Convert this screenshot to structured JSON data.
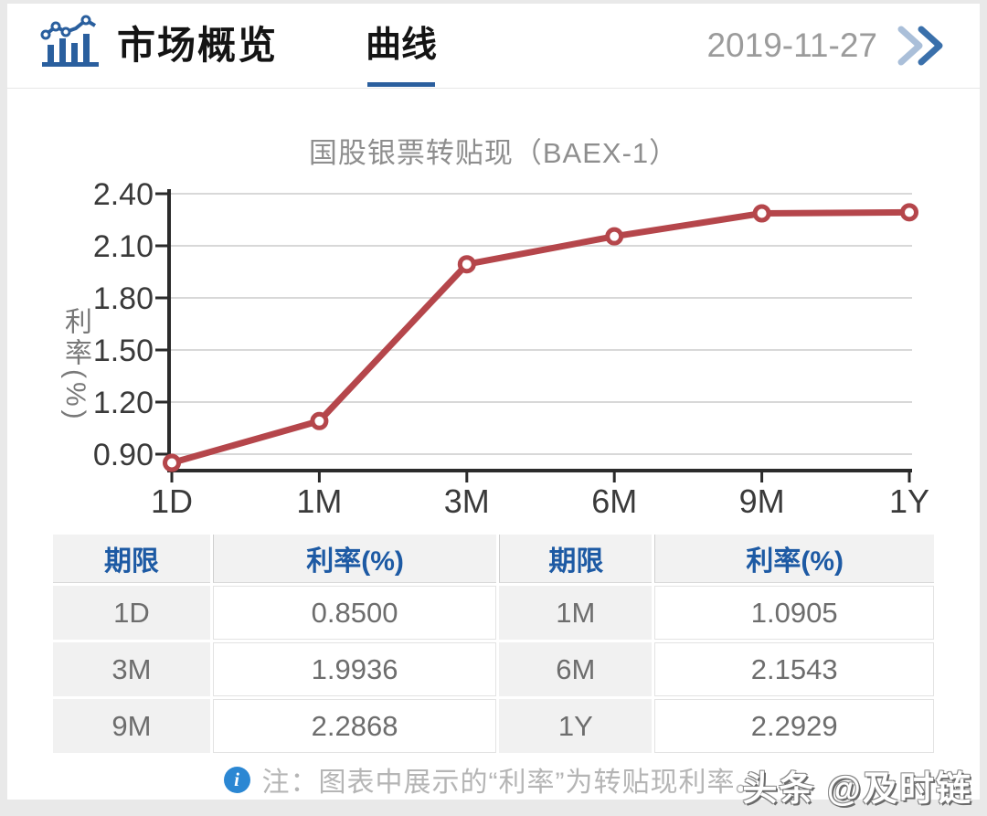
{
  "header": {
    "title": "市场概览",
    "tab": "曲线",
    "date": "2019-11-27",
    "accent_color": "#2b5f9e"
  },
  "chart_data": {
    "type": "line",
    "title": "国股银票转贴现（BAEX-1）",
    "ylabel": "利率(%)",
    "categories": [
      "1D",
      "1M",
      "3M",
      "6M",
      "9M",
      "1Y"
    ],
    "values": [
      0.85,
      1.0905,
      1.9936,
      2.1543,
      2.2868,
      2.2929
    ],
    "yticks": [
      2.4,
      2.1,
      1.8,
      1.5,
      1.2,
      0.9
    ],
    "ytick_labels": [
      "2.40",
      "2.10",
      "1.80",
      "1.50",
      "1.20",
      "0.90"
    ],
    "ylim": [
      0.8,
      2.45
    ],
    "grid": true,
    "legend": false,
    "line_color": "#b5464b",
    "marker": "open-circle",
    "grid_color": "#d8d8d8",
    "axis_color": "#2b2b2b",
    "tick_text_color": "#3a3a3a"
  },
  "table": {
    "headers": [
      "期限",
      "利率(%)",
      "期限",
      "利率(%)"
    ],
    "rows": [
      [
        "1D",
        "0.8500",
        "1M",
        "1.0905"
      ],
      [
        "3M",
        "1.9936",
        "6M",
        "2.1543"
      ],
      [
        "9M",
        "2.2868",
        "1Y",
        "2.2929"
      ]
    ]
  },
  "note": {
    "text": "注：图表中展示的“利率”为转贴现利率。"
  },
  "watermark": "头条 @及时链"
}
